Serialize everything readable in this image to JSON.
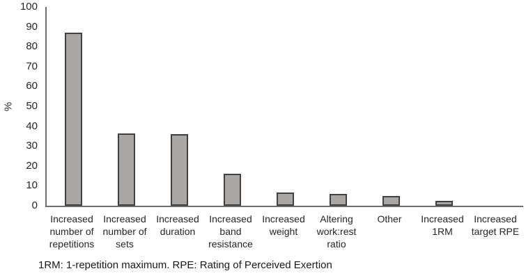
{
  "chart_data": {
    "type": "bar",
    "title": "",
    "xlabel": "",
    "ylabel": "%",
    "ylim": [
      0,
      100
    ],
    "ytick_step": 10,
    "grid": false,
    "legend": false,
    "categories": [
      "Increased number of repetitions",
      "Increased number of sets",
      "Increased duration",
      "Increased band resistance",
      "Increased weight",
      "Altering work:rest ratio",
      "Other",
      "Increased 1RM",
      "Increased target RPE"
    ],
    "values": [
      87,
      36.5,
      36,
      16,
      6.5,
      6,
      5,
      2.5,
      0
    ],
    "colors": {
      "bar_fill": "#aba7a4",
      "bar_border": "#404040",
      "axis": "#6e6e6e",
      "text": "#262626"
    }
  },
  "footnote": "1RM: 1-repetition maximum. RPE: Rating of Perceived Exertion"
}
